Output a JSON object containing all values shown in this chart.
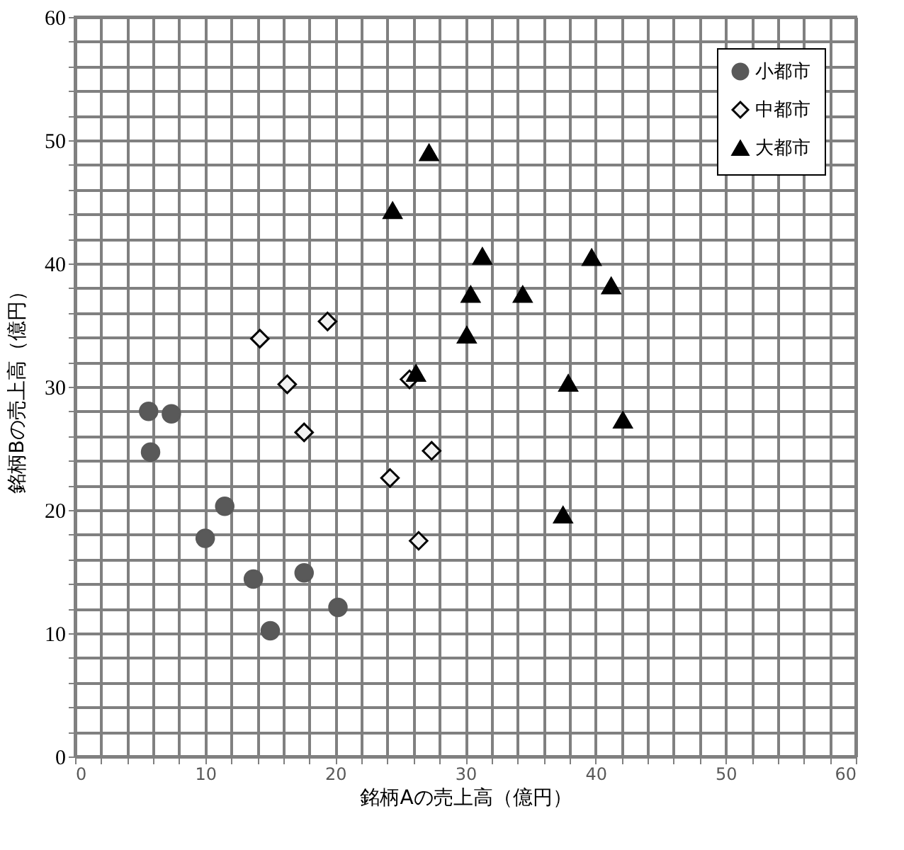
{
  "chart_data": {
    "type": "scatter",
    "xlabel": "銘柄Aの売上高（億円）",
    "ylabel": "銘柄Bの売上高（億円）",
    "xlim": [
      0,
      60
    ],
    "ylim": [
      0,
      60
    ],
    "xticks": [
      0,
      10,
      20,
      30,
      40,
      50,
      60
    ],
    "yticks": [
      0,
      10,
      20,
      30,
      40,
      50,
      60
    ],
    "grid": true,
    "legend": "top right",
    "series": [
      {
        "name": "小都市",
        "color": "#595959",
        "marker": "circle",
        "x": [
          5.65,
          7.4,
          5.8,
          11.5,
          10.0,
          13.7,
          17.6,
          20.2,
          15.0
        ],
        "values": [
          28.0,
          27.8,
          24.7,
          20.3,
          17.7,
          14.4,
          14.9,
          12.1,
          10.2
        ]
      },
      {
        "name": "中都市",
        "color": "#f2f2f2",
        "marker": "diamond",
        "x": [
          14.2,
          19.4,
          16.3,
          17.6,
          25.7,
          27.4,
          24.2,
          26.4
        ],
        "values": [
          33.9,
          35.3,
          30.2,
          26.3,
          30.6,
          24.8,
          22.6,
          17.5
        ]
      },
      {
        "name": "大都市",
        "color": "#000000",
        "marker": "triangle",
        "x": [
          27.2,
          24.4,
          31.3,
          30.4,
          30.1,
          26.2,
          34.4,
          39.7,
          41.2,
          37.9,
          42.1,
          37.5
        ],
        "values": [
          49.0,
          44.3,
          40.6,
          37.5,
          34.2,
          31.1,
          37.5,
          40.5,
          38.2,
          30.3,
          27.3,
          19.6
        ]
      }
    ]
  }
}
